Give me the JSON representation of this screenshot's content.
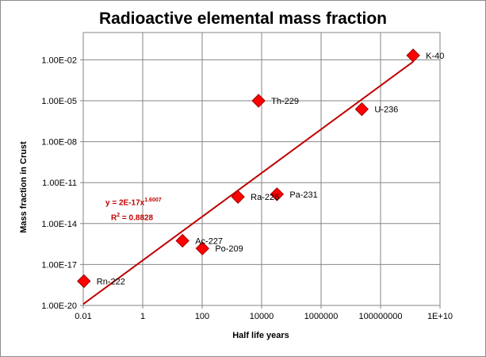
{
  "chart_data": {
    "type": "scatter",
    "title": "Radioactive elemental mass fraction",
    "xlabel": "Half life years",
    "ylabel": "Mass fraction in Crust",
    "x_scale": "log",
    "y_scale": "log",
    "xlim": [
      0.01,
      10000000000
    ],
    "ylim": [
      1e-20,
      1
    ],
    "x_ticks": [
      0.01,
      1,
      100,
      10000,
      1000000,
      100000000,
      10000000000
    ],
    "x_tick_labels": [
      "0.01",
      "1",
      "100",
      "10000",
      "1000000",
      "100000000",
      "1E+10"
    ],
    "y_ticks": [
      1e-20,
      1e-17,
      1e-14,
      1e-11,
      1e-08,
      1e-05,
      0.01
    ],
    "y_tick_labels": [
      "1.00E-20",
      "1.00E-17",
      "1.00E-14",
      "1.00E-11",
      "1.00E-08",
      "1.00E-05",
      "1.00E-02"
    ],
    "grid": true,
    "marker_color": "#ff0000",
    "trendline_color": "#c00000",
    "points": [
      {
        "label": "Rn-222",
        "x": 0.0105,
        "y": 6e-19
      },
      {
        "label": "Ac-227",
        "x": 21.8,
        "y": 5.5e-16
      },
      {
        "label": "Po-209",
        "x": 102,
        "y": 1.5e-16
      },
      {
        "label": "Ra-226",
        "x": 1600,
        "y": 9e-13
      },
      {
        "label": "Pa-231",
        "x": 32760,
        "y": 1.4e-12
      },
      {
        "label": "Th-229",
        "x": 7880,
        "y": 1e-05
      },
      {
        "label": "U-236",
        "x": 23400000,
        "y": 2.4e-06
      },
      {
        "label": "K-40",
        "x": 1250000000,
        "y": 0.021
      }
    ],
    "trendline": {
      "type": "power",
      "coefficient": 2e-17,
      "exponent": 1.6007,
      "x_range": [
        0.01,
        1250000000
      ]
    },
    "annotation": {
      "equation_prefix": "y = 2E-17x",
      "equation_exponent": "1.6007",
      "r2_prefix": "R",
      "r2_exponent": "2",
      "r2_suffix": " = 0.8828"
    }
  }
}
